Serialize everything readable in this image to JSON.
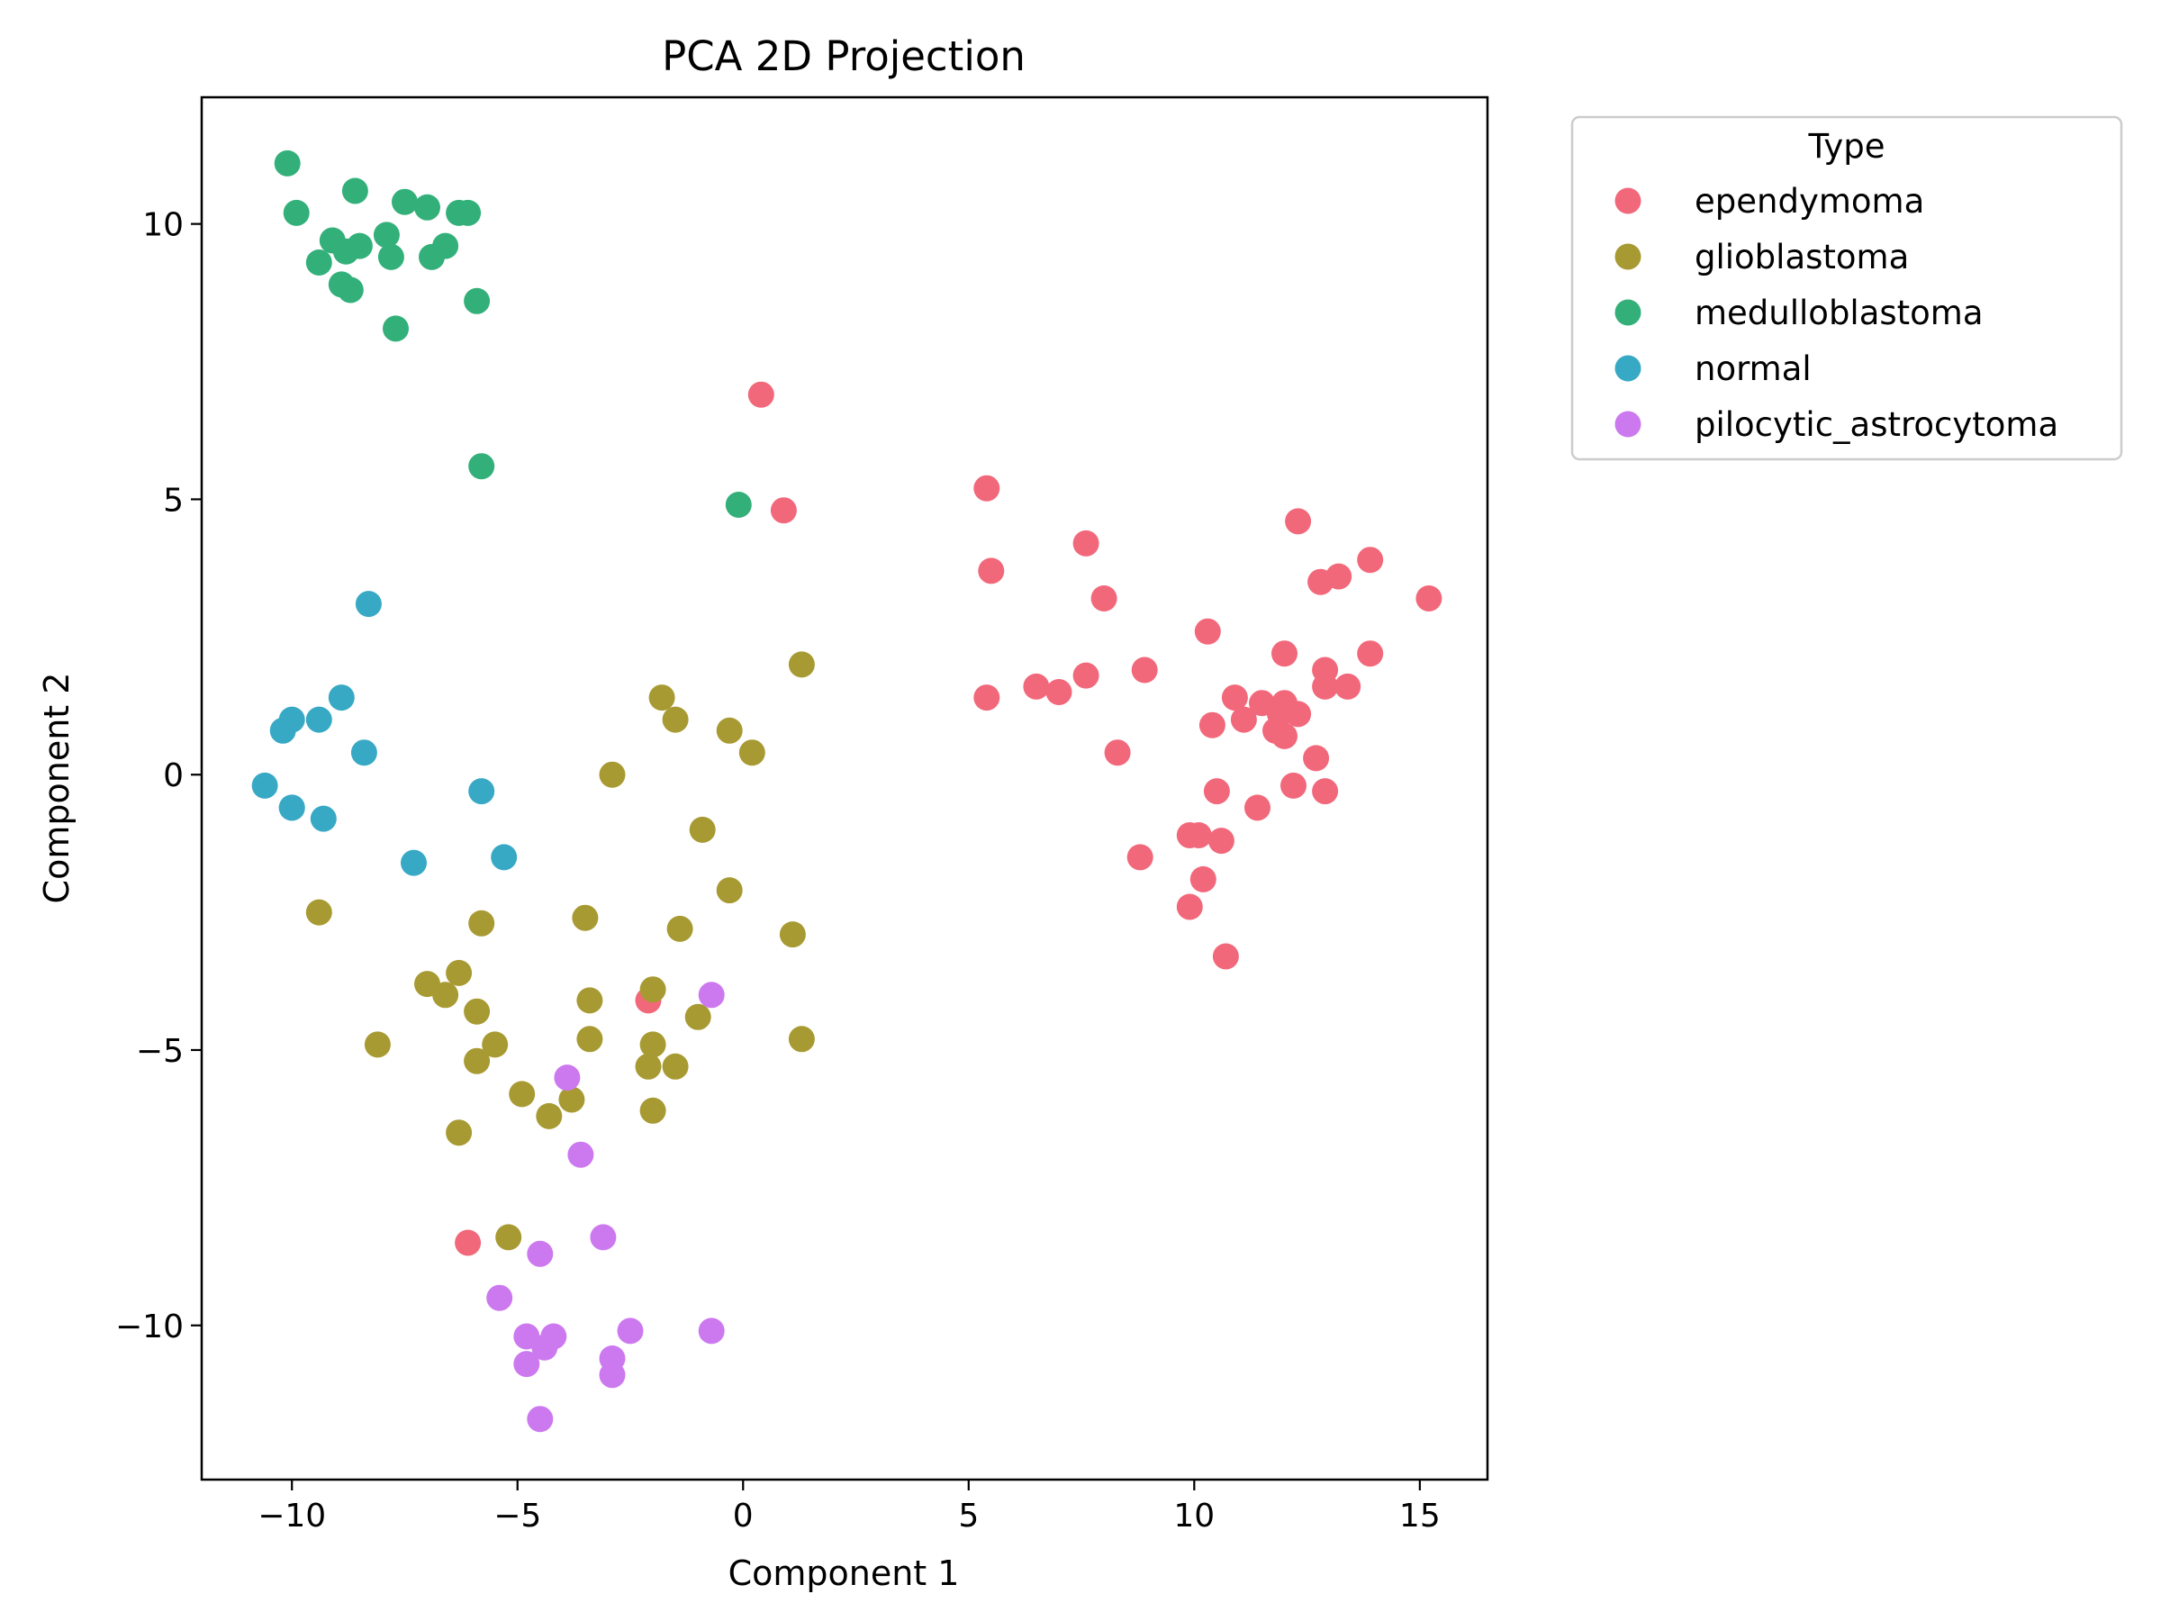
{
  "chart_data": {
    "type": "scatter",
    "title": "PCA 2D Projection",
    "xlabel": "Component 1",
    "ylabel": "Component 2",
    "xlim": [
      -12,
      16.5
    ],
    "ylim": [
      -12.8,
      12.3
    ],
    "xticks": [
      -10,
      -5,
      0,
      5,
      10,
      15
    ],
    "yticks": [
      -10,
      -5,
      0,
      5,
      10
    ],
    "grid": false,
    "legend": {
      "title": "Type",
      "placement": "outside-top-right"
    },
    "series": [
      {
        "name": "ependymoma",
        "color": "#f2687b",
        "points": [
          [
            0.4,
            6.9
          ],
          [
            0.9,
            4.8
          ],
          [
            5.4,
            5.2
          ],
          [
            5.5,
            3.7
          ],
          [
            5.4,
            1.4
          ],
          [
            6.5,
            1.6
          ],
          [
            7.0,
            1.5
          ],
          [
            7.6,
            4.2
          ],
          [
            7.6,
            1.8
          ],
          [
            8.0,
            3.2
          ],
          [
            8.3,
            0.4
          ],
          [
            8.8,
            -1.5
          ],
          [
            8.9,
            1.9
          ],
          [
            9.9,
            -1.1
          ],
          [
            10.1,
            -1.1
          ],
          [
            9.9,
            -2.4
          ],
          [
            10.2,
            -1.9
          ],
          [
            10.3,
            2.6
          ],
          [
            10.4,
            0.9
          ],
          [
            10.5,
            -0.3
          ],
          [
            10.6,
            -1.2
          ],
          [
            10.7,
            -3.3
          ],
          [
            10.9,
            1.4
          ],
          [
            11.1,
            1.0
          ],
          [
            11.4,
            -0.6
          ],
          [
            11.5,
            1.3
          ],
          [
            11.8,
            0.8
          ],
          [
            11.9,
            1.1
          ],
          [
            12.0,
            0.7
          ],
          [
            12.0,
            1.3
          ],
          [
            12.0,
            2.2
          ],
          [
            12.2,
            -0.2
          ],
          [
            12.3,
            1.1
          ],
          [
            12.3,
            4.6
          ],
          [
            12.7,
            0.3
          ],
          [
            12.8,
            3.5
          ],
          [
            12.9,
            -0.3
          ],
          [
            12.9,
            1.9
          ],
          [
            12.9,
            1.6
          ],
          [
            13.2,
            3.6
          ],
          [
            13.4,
            1.6
          ],
          [
            13.9,
            2.2
          ],
          [
            13.9,
            3.9
          ],
          [
            15.2,
            3.2
          ],
          [
            -2.1,
            -4.1
          ],
          [
            -6.1,
            -8.5
          ]
        ]
      },
      {
        "name": "glioblastoma",
        "color": "#a89a32",
        "points": [
          [
            1.3,
            2.0
          ],
          [
            0.2,
            0.4
          ],
          [
            -0.3,
            0.8
          ],
          [
            -1.5,
            1.0
          ],
          [
            -1.8,
            1.4
          ],
          [
            -2.9,
            0.0
          ],
          [
            -0.9,
            -1.0
          ],
          [
            -0.3,
            -2.1
          ],
          [
            1.1,
            -2.9
          ],
          [
            -1.4,
            -2.8
          ],
          [
            -3.5,
            -2.6
          ],
          [
            -9.4,
            -2.5
          ],
          [
            -5.8,
            -2.7
          ],
          [
            -6.3,
            -3.6
          ],
          [
            -7.0,
            -3.8
          ],
          [
            -6.6,
            -4.0
          ],
          [
            -5.9,
            -4.3
          ],
          [
            -3.4,
            -4.1
          ],
          [
            -2.0,
            -3.9
          ],
          [
            -1.0,
            -4.4
          ],
          [
            1.3,
            -4.8
          ],
          [
            -8.1,
            -4.9
          ],
          [
            -5.5,
            -4.9
          ],
          [
            -3.4,
            -4.8
          ],
          [
            -2.0,
            -4.9
          ],
          [
            -5.9,
            -5.2
          ],
          [
            -2.1,
            -5.3
          ],
          [
            -1.5,
            -5.3
          ],
          [
            -4.9,
            -5.8
          ],
          [
            -3.8,
            -5.9
          ],
          [
            -4.3,
            -6.2
          ],
          [
            -2.0,
            -6.1
          ],
          [
            -6.3,
            -6.5
          ],
          [
            -5.2,
            -8.4
          ]
        ]
      },
      {
        "name": "medulloblastoma",
        "color": "#33b07a",
        "points": [
          [
            -10.1,
            11.1
          ],
          [
            -9.9,
            10.2
          ],
          [
            -8.6,
            10.6
          ],
          [
            -7.5,
            10.4
          ],
          [
            -7.0,
            10.3
          ],
          [
            -6.3,
            10.2
          ],
          [
            -6.1,
            10.2
          ],
          [
            -9.1,
            9.7
          ],
          [
            -7.9,
            9.8
          ],
          [
            -8.8,
            9.5
          ],
          [
            -8.5,
            9.6
          ],
          [
            -6.6,
            9.6
          ],
          [
            -9.4,
            9.3
          ],
          [
            -7.8,
            9.4
          ],
          [
            -6.9,
            9.4
          ],
          [
            -8.9,
            8.9
          ],
          [
            -8.7,
            8.8
          ],
          [
            -7.7,
            8.1
          ],
          [
            -5.9,
            8.6
          ],
          [
            -5.8,
            5.6
          ],
          [
            -0.1,
            4.9
          ]
        ]
      },
      {
        "name": "normal",
        "color": "#38a9c5",
        "points": [
          [
            -8.3,
            3.1
          ],
          [
            -8.9,
            1.4
          ],
          [
            -10.0,
            1.0
          ],
          [
            -9.4,
            1.0
          ],
          [
            -10.2,
            0.8
          ],
          [
            -8.4,
            0.4
          ],
          [
            -10.6,
            -0.2
          ],
          [
            -5.8,
            -0.3
          ],
          [
            -10.0,
            -0.6
          ],
          [
            -10.0,
            -0.6
          ],
          [
            -9.3,
            -0.8
          ],
          [
            -7.3,
            -1.6
          ],
          [
            -5.3,
            -1.5
          ]
        ]
      },
      {
        "name": "pilocytic_astrocytoma",
        "color": "#cc79f0",
        "points": [
          [
            -0.7,
            -4.0
          ],
          [
            -3.9,
            -5.5
          ],
          [
            -3.6,
            -6.9
          ],
          [
            -4.5,
            -8.7
          ],
          [
            -3.1,
            -8.4
          ],
          [
            -5.4,
            -9.5
          ],
          [
            -4.8,
            -10.2
          ],
          [
            -4.2,
            -10.2
          ],
          [
            -4.4,
            -10.4
          ],
          [
            -2.5,
            -10.1
          ],
          [
            -0.7,
            -10.1
          ],
          [
            -4.8,
            -10.7
          ],
          [
            -2.9,
            -10.6
          ],
          [
            -2.9,
            -10.9
          ],
          [
            -4.5,
            -11.7
          ]
        ]
      }
    ]
  }
}
